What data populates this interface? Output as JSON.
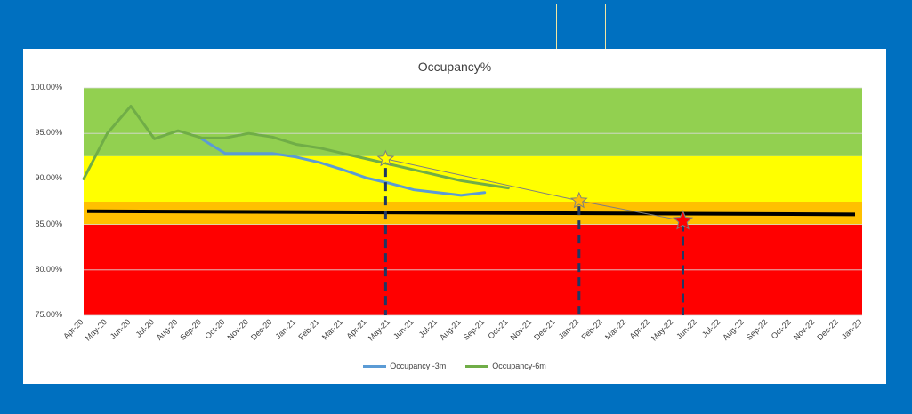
{
  "chart_data": {
    "type": "line",
    "title": "Occupancy%",
    "categories": [
      "Apr-20",
      "May-20",
      "Jun-20",
      "Jul-20",
      "Aug-20",
      "Sep-20",
      "Oct-20",
      "Nov-20",
      "Dec-20",
      "Jan-21",
      "Feb-21",
      "Mar-21",
      "Apr-21",
      "May-21",
      "Jun-21",
      "Jul-21",
      "Aug-21",
      "Sep-21",
      "Oct-21",
      "Nov-21",
      "Dec-21",
      "Jan-22",
      "Feb-22",
      "Mar-22",
      "Apr-22",
      "May-22",
      "Jun-22",
      "Jul-22",
      "Aug-22",
      "Sep-22",
      "Oct-22",
      "Nov-22",
      "Dec-22",
      "Jan-23"
    ],
    "yticks": [
      "75.00%",
      "80.00%",
      "85.00%",
      "90.00%",
      "95.00%",
      "100.00%"
    ],
    "ylim": [
      75,
      100
    ],
    "grid": true,
    "legend_position": "bottom",
    "bands": [
      {
        "from": 75,
        "to": 85,
        "color": "#ff0000"
      },
      {
        "from": 85,
        "to": 87.5,
        "color": "#ffc000"
      },
      {
        "from": 87.5,
        "to": 92.5,
        "color": "#ffff00"
      },
      {
        "from": 92.5,
        "to": 100,
        "color": "#92d050"
      }
    ],
    "series": [
      {
        "name": "Occupancy -3m",
        "color": "#5b9bd5",
        "values": [
          null,
          null,
          null,
          null,
          null,
          94.4,
          92.8,
          92.8,
          92.8,
          92.4,
          91.8,
          91.0,
          90.1,
          89.5,
          88.8,
          88.5,
          88.2,
          88.5,
          null,
          null,
          null,
          null,
          null,
          null,
          null,
          null,
          null,
          null,
          null,
          null,
          null,
          null,
          null,
          null
        ]
      },
      {
        "name": "Occupancy-6m",
        "color": "#70ad47",
        "values": [
          90.0,
          95.0,
          98.0,
          94.4,
          95.3,
          94.5,
          94.5,
          95.0,
          94.6,
          93.8,
          93.4,
          92.8,
          92.2,
          91.6,
          91.0,
          90.4,
          89.8,
          89.4,
          89.0,
          null,
          null,
          null,
          null,
          null,
          null,
          null,
          null,
          null,
          null,
          null,
          null,
          null,
          null,
          null
        ]
      }
    ],
    "threshold": {
      "value": 86.2,
      "color": "#000000"
    },
    "trend": {
      "x": [
        12.8,
        21.0,
        25.4
      ],
      "y": [
        92.2,
        87.6,
        85.4
      ],
      "color": "#7f7f7f"
    },
    "stars": [
      {
        "x": 12.8,
        "y": 92.2,
        "fill": "#ffff00"
      },
      {
        "x": 21.0,
        "y": 87.6,
        "fill": "#ffc000"
      },
      {
        "x": 25.4,
        "y": 85.4,
        "fill": "#ff0000"
      }
    ],
    "markers": [
      {
        "x": 12.8,
        "from": 91.2,
        "to": 75.0,
        "color": "#1f3864"
      },
      {
        "x": 21.0,
        "from": 87.0,
        "to": 75.0,
        "color": "#1f3864"
      },
      {
        "x": 25.4,
        "from": 85.2,
        "to": 75.0,
        "color": "#1f3864"
      }
    ]
  }
}
